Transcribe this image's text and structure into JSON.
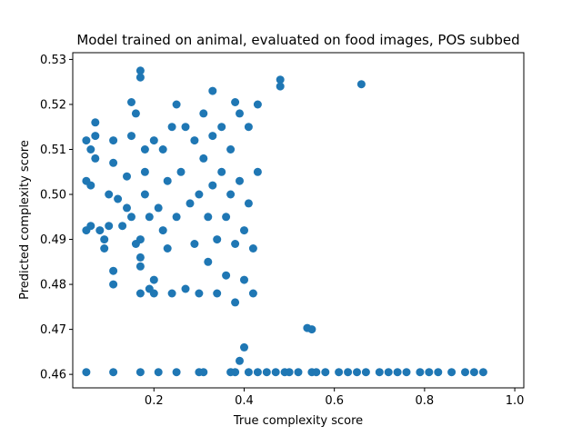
{
  "chart_data": {
    "type": "scatter",
    "title": "Model trained on animal, evaluated on food images, POS subbed",
    "xlabel": "True complexity score",
    "ylabel": "Predicted complexity score",
    "xlim": [
      0.02,
      1.02
    ],
    "ylim": [
      0.457,
      0.5315
    ],
    "xticks": [
      "0.2",
      "0.4",
      "0.6",
      "0.8",
      "1.0"
    ],
    "yticks": [
      "0.46",
      "0.47",
      "0.48",
      "0.49",
      "0.50",
      "0.51",
      "0.52",
      "0.53"
    ],
    "grid": false,
    "marker_color": "#1f77b4",
    "series": [
      {
        "values_note": "",
        "points": [
          [
            0.05,
            0.4605
          ],
          [
            0.11,
            0.4605
          ],
          [
            0.17,
            0.4605
          ],
          [
            0.21,
            0.4605
          ],
          [
            0.25,
            0.4605
          ],
          [
            0.3,
            0.4605
          ],
          [
            0.31,
            0.4605
          ],
          [
            0.37,
            0.4605
          ],
          [
            0.38,
            0.4605
          ],
          [
            0.41,
            0.4605
          ],
          [
            0.43,
            0.4605
          ],
          [
            0.45,
            0.4605
          ],
          [
            0.47,
            0.4605
          ],
          [
            0.49,
            0.4605
          ],
          [
            0.5,
            0.4605
          ],
          [
            0.52,
            0.4605
          ],
          [
            0.55,
            0.4605
          ],
          [
            0.56,
            0.4605
          ],
          [
            0.58,
            0.4605
          ],
          [
            0.61,
            0.4605
          ],
          [
            0.63,
            0.4605
          ],
          [
            0.65,
            0.4605
          ],
          [
            0.67,
            0.4605
          ],
          [
            0.7,
            0.4605
          ],
          [
            0.72,
            0.4605
          ],
          [
            0.74,
            0.4605
          ],
          [
            0.76,
            0.4605
          ],
          [
            0.79,
            0.4605
          ],
          [
            0.81,
            0.4605
          ],
          [
            0.83,
            0.4605
          ],
          [
            0.86,
            0.4605
          ],
          [
            0.89,
            0.4605
          ],
          [
            0.91,
            0.4605
          ],
          [
            0.93,
            0.4605
          ],
          [
            0.39,
            0.463
          ],
          [
            0.4,
            0.466
          ],
          [
            0.55,
            0.47
          ],
          [
            0.54,
            0.4703
          ],
          [
            0.17,
            0.5275
          ],
          [
            0.17,
            0.526
          ],
          [
            0.15,
            0.5205
          ],
          [
            0.16,
            0.518
          ],
          [
            0.25,
            0.52
          ],
          [
            0.33,
            0.523
          ],
          [
            0.38,
            0.5205
          ],
          [
            0.48,
            0.5255
          ],
          [
            0.48,
            0.524
          ],
          [
            0.66,
            0.5245
          ],
          [
            0.05,
            0.512
          ],
          [
            0.07,
            0.516
          ],
          [
            0.07,
            0.513
          ],
          [
            0.06,
            0.51
          ],
          [
            0.05,
            0.503
          ],
          [
            0.06,
            0.502
          ],
          [
            0.07,
            0.508
          ],
          [
            0.05,
            0.492
          ],
          [
            0.06,
            0.493
          ],
          [
            0.08,
            0.492
          ],
          [
            0.09,
            0.49
          ],
          [
            0.09,
            0.488
          ],
          [
            0.1,
            0.493
          ],
          [
            0.1,
            0.5
          ],
          [
            0.11,
            0.512
          ],
          [
            0.11,
            0.507
          ],
          [
            0.11,
            0.483
          ],
          [
            0.11,
            0.48
          ],
          [
            0.12,
            0.499
          ],
          [
            0.13,
            0.493
          ],
          [
            0.14,
            0.504
          ],
          [
            0.14,
            0.497
          ],
          [
            0.15,
            0.495
          ],
          [
            0.15,
            0.513
          ],
          [
            0.16,
            0.489
          ],
          [
            0.17,
            0.49
          ],
          [
            0.17,
            0.486
          ],
          [
            0.17,
            0.484
          ],
          [
            0.17,
            0.478
          ],
          [
            0.18,
            0.51
          ],
          [
            0.18,
            0.505
          ],
          [
            0.18,
            0.5
          ],
          [
            0.19,
            0.495
          ],
          [
            0.19,
            0.479
          ],
          [
            0.2,
            0.481
          ],
          [
            0.2,
            0.478
          ],
          [
            0.2,
            0.512
          ],
          [
            0.21,
            0.497
          ],
          [
            0.22,
            0.51
          ],
          [
            0.22,
            0.492
          ],
          [
            0.23,
            0.488
          ],
          [
            0.23,
            0.503
          ],
          [
            0.24,
            0.478
          ],
          [
            0.24,
            0.515
          ],
          [
            0.25,
            0.495
          ],
          [
            0.26,
            0.505
          ],
          [
            0.27,
            0.479
          ],
          [
            0.27,
            0.515
          ],
          [
            0.28,
            0.498
          ],
          [
            0.29,
            0.489
          ],
          [
            0.29,
            0.512
          ],
          [
            0.3,
            0.5
          ],
          [
            0.3,
            0.478
          ],
          [
            0.31,
            0.518
          ],
          [
            0.31,
            0.508
          ],
          [
            0.32,
            0.495
          ],
          [
            0.32,
            0.485
          ],
          [
            0.33,
            0.502
          ],
          [
            0.33,
            0.513
          ],
          [
            0.34,
            0.478
          ],
          [
            0.34,
            0.49
          ],
          [
            0.35,
            0.505
          ],
          [
            0.35,
            0.515
          ],
          [
            0.36,
            0.495
          ],
          [
            0.36,
            0.482
          ],
          [
            0.37,
            0.51
          ],
          [
            0.37,
            0.5
          ],
          [
            0.38,
            0.489
          ],
          [
            0.38,
            0.476
          ],
          [
            0.39,
            0.518
          ],
          [
            0.39,
            0.503
          ],
          [
            0.4,
            0.492
          ],
          [
            0.4,
            0.481
          ],
          [
            0.41,
            0.515
          ],
          [
            0.41,
            0.498
          ],
          [
            0.42,
            0.478
          ],
          [
            0.42,
            0.488
          ],
          [
            0.43,
            0.52
          ],
          [
            0.43,
            0.505
          ]
        ]
      }
    ]
  }
}
